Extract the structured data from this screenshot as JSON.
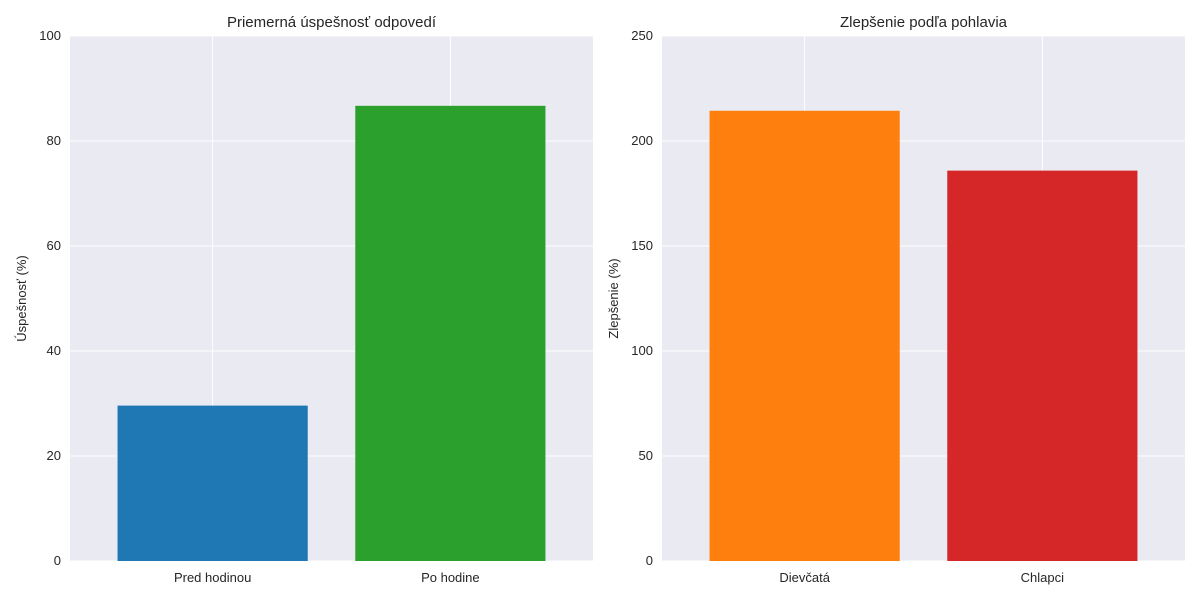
{
  "chart_data": [
    {
      "type": "bar",
      "title": "Priemerná úspešnosť odpovedí",
      "xlabel": "",
      "ylabel": "Úspešnosť (%)",
      "categories": [
        "Pred hodinou",
        "Po hodine"
      ],
      "values": [
        29.6,
        86.7
      ],
      "colors": [
        "#1f77b4",
        "#2ca02c"
      ],
      "ylim": [
        0,
        100
      ],
      "yticks": [
        0,
        20,
        40,
        60,
        80,
        100
      ],
      "grid": true
    },
    {
      "type": "bar",
      "title": "Zlepšenie podľa pohlavia",
      "xlabel": "",
      "ylabel": "Zlepšenie (%)",
      "categories": [
        "Dievčatá",
        "Chlapci"
      ],
      "values": [
        214.4,
        185.9
      ],
      "colors": [
        "#ff7f0e",
        "#d62728"
      ],
      "ylim": [
        0,
        250
      ],
      "yticks": [
        0,
        50,
        100,
        150,
        200,
        250
      ],
      "grid": true
    }
  ]
}
